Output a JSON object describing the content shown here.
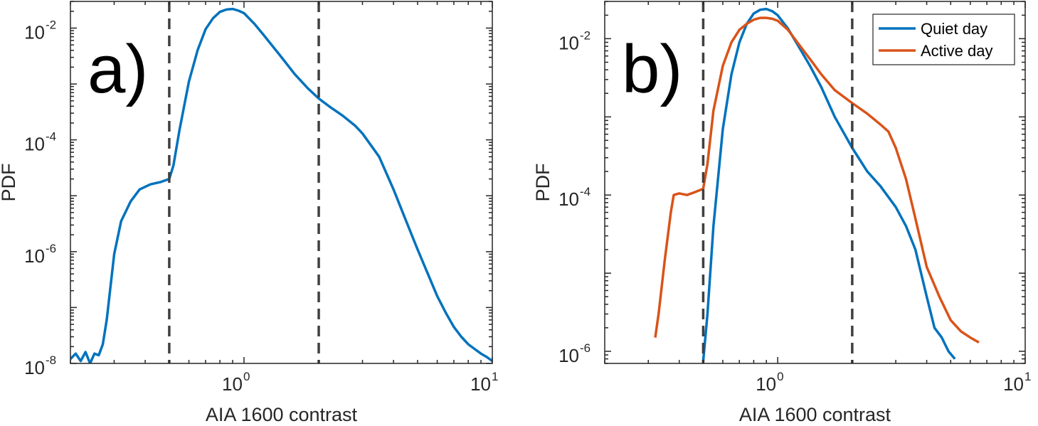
{
  "chart_data": [
    {
      "type": "line",
      "panel_label": "a)",
      "xlabel": "AIA 1600 contrast",
      "ylabel": "PDF",
      "xscale": "log",
      "yscale": "log",
      "xlim": [
        0.2,
        10
      ],
      "ylim": [
        1e-08,
        0.03
      ],
      "xticks": [
        {
          "base": "10",
          "exp": "0",
          "value": 1
        },
        {
          "base": "10",
          "exp": "1",
          "value": 10
        }
      ],
      "yticks": [
        {
          "base": "10",
          "exp": "-8",
          "value": 1e-08
        },
        {
          "base": "10",
          "exp": "-6",
          "value": 1e-06
        },
        {
          "base": "10",
          "exp": "-4",
          "value": 0.0001
        },
        {
          "base": "10",
          "exp": "-2",
          "value": 0.01
        }
      ],
      "vlines": [
        0.5,
        2.0
      ],
      "grid": false,
      "legend": null,
      "series": [
        {
          "color": "#0072BD",
          "x": [
            0.2,
            0.21,
            0.22,
            0.23,
            0.24,
            0.25,
            0.26,
            0.27,
            0.28,
            0.3,
            0.32,
            0.35,
            0.38,
            0.42,
            0.46,
            0.5,
            0.52,
            0.55,
            0.6,
            0.65,
            0.7,
            0.75,
            0.8,
            0.85,
            0.9,
            0.95,
            1.0,
            1.1,
            1.2,
            1.4,
            1.6,
            1.8,
            2.0,
            2.2,
            2.5,
            2.8,
            3.0,
            3.5,
            4.0,
            4.5,
            5.0,
            5.5,
            6.0,
            6.5,
            7.0,
            7.5,
            8.0,
            8.5,
            9.0,
            9.5,
            10.0
          ],
          "y": [
            1.2e-08,
            1.5e-08,
            1.1e-08,
            1.6e-08,
            1e-08,
            1.5e-08,
            1.4e-08,
            2.2e-08,
            6e-08,
            9e-07,
            3.5e-06,
            8e-06,
            1.3e-05,
            1.6e-05,
            1.75e-05,
            2e-05,
            3.5e-05,
            0.00015,
            0.0011,
            0.004,
            0.0095,
            0.015,
            0.0195,
            0.0215,
            0.022,
            0.0205,
            0.0185,
            0.012,
            0.0075,
            0.0032,
            0.0015,
            0.00085,
            0.00055,
            0.0004,
            0.00027,
            0.00018,
            0.00013,
            5e-05,
            1.3e-05,
            3.5e-06,
            1.1e-06,
            4e-07,
            1.6e-07,
            8e-08,
            4.5e-08,
            3e-08,
            2.2e-08,
            1.8e-08,
            1.5e-08,
            1.3e-08,
            1.1e-08
          ]
        }
      ]
    },
    {
      "type": "line",
      "panel_label": "b)",
      "xlabel": "AIA 1600 contrast",
      "ylabel": "PDF",
      "xscale": "log",
      "yscale": "log",
      "xlim": [
        0.2,
        10
      ],
      "ylim": [
        7e-07,
        0.03
      ],
      "xticks": [
        {
          "base": "10",
          "exp": "0",
          "value": 1
        },
        {
          "base": "10",
          "exp": "1",
          "value": 10
        }
      ],
      "yticks": [
        {
          "base": "10",
          "exp": "-6",
          "value": 1e-06
        },
        {
          "base": "10",
          "exp": "-4",
          "value": 0.0001
        },
        {
          "base": "10",
          "exp": "-2",
          "value": 0.01
        }
      ],
      "vlines": [
        0.5,
        2.0
      ],
      "grid": false,
      "legend": {
        "position": "top-right"
      },
      "series": [
        {
          "name": "Quiet day",
          "color": "#0072BD",
          "x": [
            0.5,
            0.52,
            0.55,
            0.6,
            0.65,
            0.7,
            0.75,
            0.8,
            0.85,
            0.9,
            0.95,
            1.0,
            1.1,
            1.2,
            1.35,
            1.5,
            1.7,
            2.0,
            2.3,
            2.6,
            3.0,
            3.3,
            3.6,
            4.0,
            4.3,
            4.6,
            4.9,
            5.2
          ],
          "y": [
            7.5e-07,
            3e-06,
            4e-05,
            0.0007,
            0.0035,
            0.009,
            0.0155,
            0.021,
            0.0235,
            0.024,
            0.0225,
            0.02,
            0.0135,
            0.0085,
            0.0045,
            0.0024,
            0.001,
            0.0004,
            0.0002,
            0.00013,
            7e-05,
            4e-05,
            2e-05,
            5e-06,
            2e-06,
            1.5e-06,
            1e-06,
            8e-07
          ]
        },
        {
          "name": "Active day",
          "color": "#D95319",
          "x": [
            0.32,
            0.33,
            0.35,
            0.37,
            0.38,
            0.4,
            0.43,
            0.46,
            0.5,
            0.52,
            0.55,
            0.6,
            0.65,
            0.7,
            0.75,
            0.8,
            0.85,
            0.9,
            0.95,
            1.0,
            1.1,
            1.2,
            1.35,
            1.5,
            1.7,
            2.0,
            2.3,
            2.6,
            2.8,
            3.0,
            3.3,
            3.6,
            4.0,
            4.5,
            5.0,
            5.5,
            6.0,
            6.5
          ],
          "y": [
            1.5e-06,
            3e-06,
            1.5e-05,
            6e-05,
            0.0001,
            0.000105,
            0.0001,
            0.000108,
            0.00012,
            0.00025,
            0.0012,
            0.0045,
            0.009,
            0.013,
            0.0155,
            0.0175,
            0.0185,
            0.0185,
            0.018,
            0.017,
            0.013,
            0.009,
            0.0055,
            0.0035,
            0.0022,
            0.0015,
            0.0011,
            0.0008,
            0.00065,
            0.0004,
            0.00016,
            5e-05,
            1.2e-05,
            5e-06,
            2.5e-06,
            1.8e-06,
            1.5e-06,
            1.3e-06
          ]
        }
      ]
    }
  ]
}
